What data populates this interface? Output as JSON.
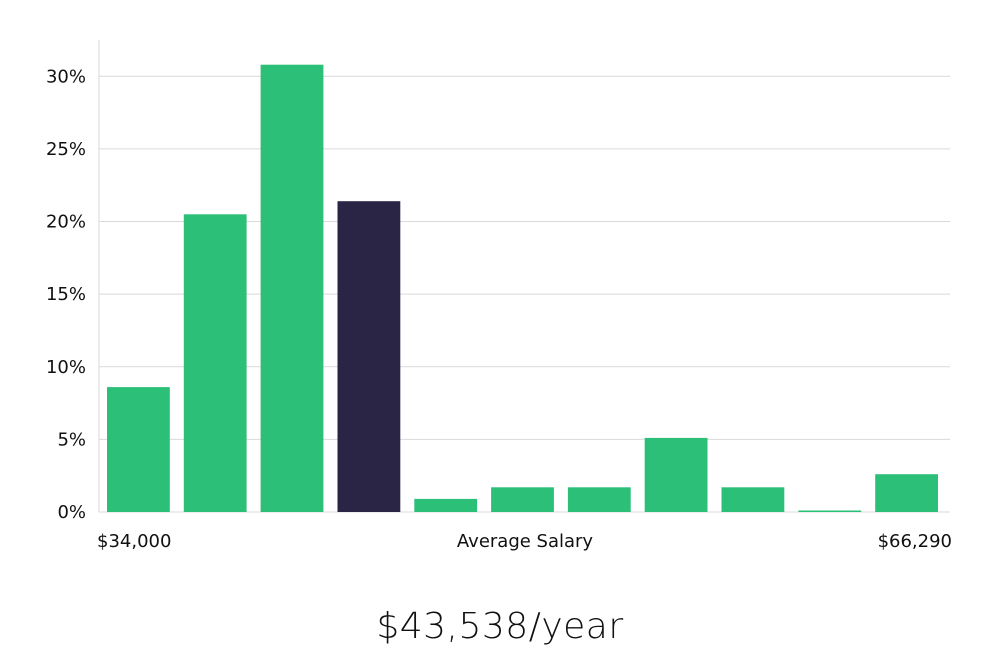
{
  "chart_data": {
    "type": "bar",
    "xlabel": "Average Salary",
    "x_range_labels": [
      "$34,000",
      "$66,290"
    ],
    "ylim": [
      0,
      0.325
    ],
    "yticks": [
      0,
      0.05,
      0.1,
      0.15,
      0.2,
      0.25,
      0.3
    ],
    "ytick_labels": [
      "0%",
      "5%",
      "10%",
      "15%",
      "20%",
      "25%",
      "30%"
    ],
    "grid": true,
    "legend": "none",
    "values": [
      0.086,
      0.205,
      0.308,
      0.214,
      0.009,
      0.017,
      0.017,
      0.051,
      0.017,
      0.001,
      0.026
    ],
    "highlight_index": 3,
    "colors": {
      "bar": "#2bbf77",
      "highlight": "#2a2545",
      "grid": "#d9d9d9"
    }
  },
  "summary": {
    "average_salary": "$43,538/year"
  }
}
